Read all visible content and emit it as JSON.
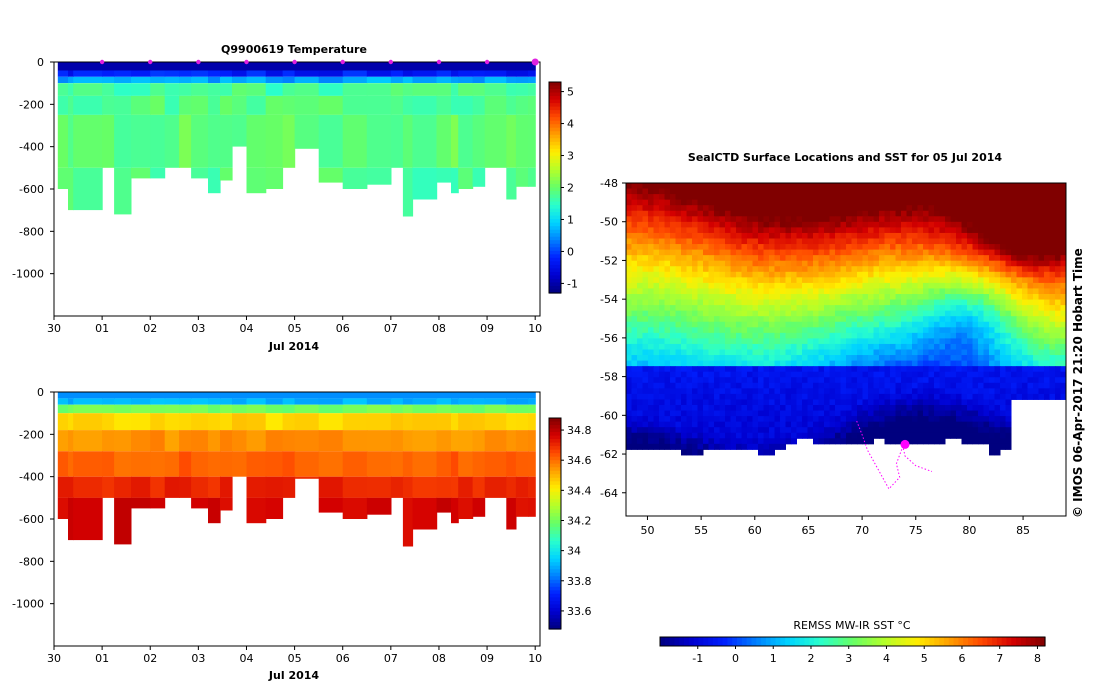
{
  "colors": {
    "jet": [
      "#00007f",
      "#0000d0",
      "#0020ff",
      "#0080ff",
      "#00d4ff",
      "#2affcc",
      "#66ff66",
      "#b4ff2a",
      "#ffee00",
      "#ffa000",
      "#ff4a00",
      "#d40000",
      "#800000"
    ],
    "profile_marker": "#e020e0",
    "track": "#ff00ff"
  },
  "chart_data": [
    {
      "id": "temperature_section",
      "type": "heatmap",
      "title": "Q9900619  Temperature",
      "xlabel": "Jul 2014",
      "x_ticks": [
        "30",
        "01",
        "02",
        "03",
        "04",
        "05",
        "06",
        "07",
        "08",
        "09",
        "10"
      ],
      "x_range": [
        30.0,
        40.1
      ],
      "y_ticks": [
        "0",
        "-200",
        "-400",
        "-600",
        "-800",
        "-1000"
      ],
      "y_range": [
        -1200,
        0
      ],
      "colorbar": {
        "ticks": [
          "5",
          "4",
          "3",
          "2",
          "1",
          "0",
          "-1"
        ],
        "tick_values": [
          5,
          4,
          3,
          2,
          1,
          0,
          -1
        ],
        "range": [
          -1.3,
          5.3
        ]
      },
      "profile_days": [
        30.0,
        30.29,
        30.4,
        31.0,
        31.25,
        31.6,
        32.0,
        32.3,
        32.6,
        32.85,
        33.2,
        33.45,
        33.7,
        34.0,
        34.4,
        34.75,
        35.0,
        35.5,
        36.0,
        36.5,
        37.0,
        37.25,
        37.45,
        37.95,
        38.25,
        38.4,
        38.7,
        38.95,
        39.4,
        39.6,
        39.85
      ],
      "profile_max_depths": [
        -600,
        -700,
        -700,
        -500,
        -720,
        -550,
        -550,
        -500,
        -500,
        -550,
        -620,
        -560,
        -400,
        -620,
        -600,
        -500,
        -410,
        -570,
        -600,
        -580,
        -500,
        -730,
        -650,
        -570,
        -620,
        -600,
        -590,
        -500,
        -650,
        -590,
        -590
      ],
      "layers": [
        {
          "depth": [
            0,
            -40
          ],
          "temp": -1.0
        },
        {
          "depth": [
            -40,
            -70
          ],
          "temp": -0.3
        },
        {
          "depth": [
            -70,
            -100
          ],
          "temp": 0.6
        },
        {
          "depth": [
            -100,
            -160
          ],
          "temp": 1.7
        },
        {
          "depth": [
            -160,
            -250
          ],
          "temp": 1.8
        },
        {
          "depth": [
            -250,
            -500
          ],
          "temp": 1.95
        },
        {
          "depth": [
            -500,
            -800
          ],
          "temp": 1.75
        }
      ],
      "marker_days": [
        31,
        32,
        33,
        34,
        35,
        36,
        37,
        38,
        39,
        40
      ]
    },
    {
      "id": "salinity_section",
      "type": "heatmap",
      "title": "",
      "xlabel": "Jul 2014",
      "x_ticks": [
        "30",
        "01",
        "02",
        "03",
        "04",
        "05",
        "06",
        "07",
        "08",
        "09",
        "10"
      ],
      "x_range": [
        30.0,
        40.1
      ],
      "y_ticks": [
        "0",
        "-200",
        "-400",
        "-600",
        "-800",
        "-1000"
      ],
      "y_range": [
        -1200,
        0
      ],
      "colorbar": {
        "ticks": [
          "34.8",
          "34.6",
          "34.4",
          "34.2",
          "34",
          "33.8",
          "33.6"
        ],
        "tick_values": [
          34.8,
          34.6,
          34.4,
          34.2,
          34.0,
          33.8,
          33.6
        ],
        "range": [
          33.48,
          34.88
        ]
      },
      "layers": [
        {
          "depth": [
            0,
            -30
          ],
          "sal": 33.85
        },
        {
          "depth": [
            -30,
            -60
          ],
          "sal": 33.9
        },
        {
          "depth": [
            -60,
            -100
          ],
          "sal": 34.2
        },
        {
          "depth": [
            -100,
            -180
          ],
          "sal": 34.45
        },
        {
          "depth": [
            -180,
            -280
          ],
          "sal": 34.55
        },
        {
          "depth": [
            -280,
            -400
          ],
          "sal": 34.62
        },
        {
          "depth": [
            -400,
            -500
          ],
          "sal": 34.7
        },
        {
          "depth": [
            -500,
            -800
          ],
          "sal": 34.76
        }
      ]
    },
    {
      "id": "sst_map",
      "type": "heatmap",
      "title": "SealCTD Surface Locations and SST for 05 Jul 2014",
      "x_ticks": [
        "50",
        "55",
        "60",
        "65",
        "70",
        "75",
        "80",
        "85"
      ],
      "x_range": [
        48,
        89
      ],
      "y_ticks": [
        "-48",
        "-50",
        "-52",
        "-54",
        "-56",
        "-58",
        "-60",
        "-62",
        "-64"
      ],
      "y_range": [
        -65.2,
        -48
      ],
      "colorbar_label": "REMSS MW-IR SST °C",
      "colorbar": {
        "ticks": [
          "-1",
          "0",
          "1",
          "2",
          "3",
          "4",
          "5",
          "6",
          "7",
          "8"
        ],
        "tick_values": [
          -1,
          0,
          1,
          2,
          3,
          4,
          5,
          6,
          7,
          8
        ],
        "range": [
          -2,
          8.2
        ]
      },
      "track_points": [
        [
          69.5,
          -60.3
        ],
        [
          70,
          -61
        ],
        [
          70.5,
          -61.8
        ],
        [
          71.5,
          -62.8
        ],
        [
          72.5,
          -63.8
        ],
        [
          73.5,
          -63.2
        ],
        [
          73.2,
          -62.5
        ],
        [
          73.8,
          -61.6
        ],
        [
          74,
          -62.1
        ],
        [
          75,
          -62.6
        ],
        [
          76.5,
          -62.9
        ]
      ],
      "current_position": [
        74,
        -61.5
      ]
    }
  ],
  "credit": "© IMOS 06-Apr-2017 21:20 Hobart Time"
}
